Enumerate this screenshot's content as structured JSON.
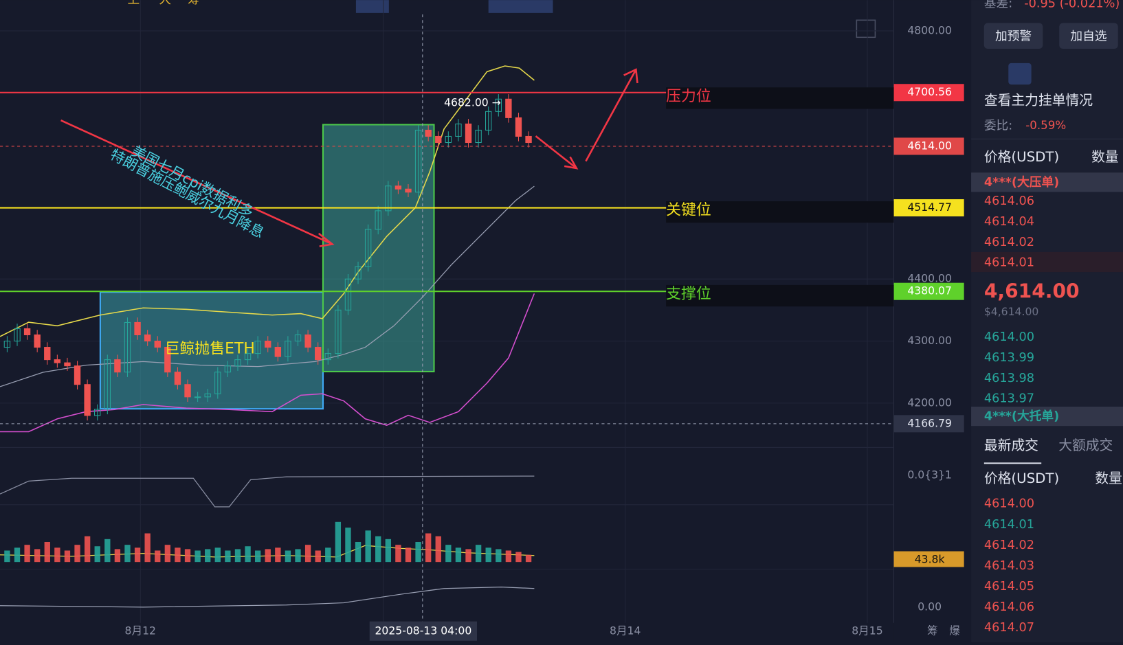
{
  "toolbar": {
    "tabs": [
      "上",
      "大",
      "筹"
    ]
  },
  "annotations": {
    "news1": "美国七月cpi数据利多",
    "news2": "特朗普施压鲍威尔九月降息",
    "whale": "巨鲸抛售ETH",
    "resistance": "压力位",
    "key": "关键位",
    "support": "支撑位",
    "peak": "4682.00 →"
  },
  "price_axis": {
    "ticks": [
      {
        "value": 4800,
        "label": "4800.00"
      },
      {
        "value": 4400,
        "label": "4400.00"
      },
      {
        "value": 4300,
        "label": "4300.00"
      },
      {
        "value": 4200,
        "label": "4200.00"
      }
    ],
    "levels": [
      {
        "value": 4700.56,
        "label": "4700.56",
        "color": "#f23645"
      },
      {
        "value": 4614,
        "label": "4614.00",
        "color": "#e04848"
      },
      {
        "value": 4514.77,
        "label": "4514.77",
        "color": "#f5e11f"
      },
      {
        "value": 4380.07,
        "label": "4380.07",
        "color": "#5fd12b"
      }
    ],
    "crosshair": {
      "value": 4166.79,
      "label": "4166.79"
    },
    "indicator_label": "0.0{3}1",
    "volume_label": "43.8k",
    "macd_label": "0.00"
  },
  "time_axis": [
    "8月12",
    "8月14",
    "8月15"
  ],
  "crosshair_time": "2025-08-13 04:00",
  "side_tabs": [
    "筹",
    "爆"
  ],
  "candles": [
    [
      4290,
      4308,
      4282,
      4300
    ],
    [
      4300,
      4328,
      4292,
      4320
    ],
    [
      4320,
      4328,
      4302,
      4310
    ],
    [
      4310,
      4318,
      4282,
      4290
    ],
    [
      4290,
      4298,
      4262,
      4270
    ],
    [
      4270,
      4278,
      4257,
      4265
    ],
    [
      4265,
      4273,
      4252,
      4260
    ],
    [
      4260,
      4268,
      4222,
      4230
    ],
    [
      4230,
      4238,
      4172,
      4180
    ],
    [
      4180,
      4198,
      4172,
      4190
    ],
    [
      4190,
      4278,
      4182,
      4270
    ],
    [
      4270,
      4278,
      4242,
      4250
    ],
    [
      4250,
      4338,
      4242,
      4330
    ],
    [
      4330,
      4338,
      4302,
      4310
    ],
    [
      4310,
      4318,
      4292,
      4300
    ],
    [
      4300,
      4308,
      4282,
      4290
    ],
    [
      4290,
      4298,
      4242,
      4250
    ],
    [
      4250,
      4258,
      4222,
      4230
    ],
    [
      4230,
      4238,
      4202,
      4210
    ],
    [
      4210,
      4218,
      4202,
      4210
    ],
    [
      4210,
      4223,
      4202,
      4215
    ],
    [
      4215,
      4258,
      4207,
      4250
    ],
    [
      4250,
      4268,
      4242,
      4260
    ],
    [
      4260,
      4278,
      4252,
      4270
    ],
    [
      4270,
      4288,
      4262,
      4280
    ],
    [
      4280,
      4308,
      4272,
      4300
    ],
    [
      4300,
      4308,
      4282,
      4290
    ],
    [
      4290,
      4298,
      4267,
      4275
    ],
    [
      4275,
      4308,
      4267,
      4300
    ],
    [
      4300,
      4318,
      4292,
      4310
    ],
    [
      4310,
      4318,
      4282,
      4290
    ],
    [
      4290,
      4298,
      4262,
      4270
    ],
    [
      4270,
      4288,
      4262,
      4280
    ],
    [
      4280,
      4358,
      4272,
      4350
    ],
    [
      4350,
      4408,
      4342,
      4400
    ],
    [
      4400,
      4428,
      4392,
      4420
    ],
    [
      4420,
      4488,
      4412,
      4480
    ],
    [
      4480,
      4518,
      4472,
      4510
    ],
    [
      4510,
      4558,
      4502,
      4550
    ],
    [
      4550,
      4558,
      4537,
      4545
    ],
    [
      4545,
      4553,
      4532,
      4540
    ],
    [
      4540,
      4648,
      4532,
      4640
    ],
    [
      4640,
      4648,
      4622,
      4630
    ],
    [
      4630,
      4638,
      4612,
      4620
    ],
    [
      4620,
      4638,
      4612,
      4630
    ],
    [
      4630,
      4658,
      4622,
      4650
    ],
    [
      4650,
      4658,
      4612,
      4620
    ],
    [
      4620,
      4648,
      4612,
      4640
    ],
    [
      4640,
      4678,
      4632,
      4670
    ],
    [
      4670,
      4698,
      4662,
      4690
    ],
    [
      4690,
      4698,
      4652,
      4660
    ],
    [
      4660,
      4668,
      4622,
      4630
    ],
    [
      4630,
      4638,
      4612,
      4620
    ]
  ],
  "volumes": [
    8,
    10,
    12,
    9,
    14,
    10,
    8,
    12,
    18,
    11,
    16,
    9,
    12,
    10,
    20,
    8,
    12,
    10,
    9,
    8,
    9,
    10,
    8,
    9,
    11,
    8,
    9,
    10,
    8,
    9,
    12,
    8,
    10,
    28,
    24,
    14,
    22,
    18,
    16,
    12,
    10,
    14,
    20,
    18,
    12,
    10,
    9,
    12,
    10,
    9,
    8,
    7,
    5
  ],
  "panel": {
    "basis_label": "基差:",
    "basis_value": "-0.95 (-0.021%)",
    "buttons": [
      "加预警",
      "加自选"
    ],
    "depth_link": "查看主力挂单情况",
    "ratio_label": "委比:",
    "ratio_value": "-0.59%",
    "book_header": [
      "价格(USDT)",
      "数量"
    ],
    "big_ask": "4***(大压单)",
    "asks": [
      "4614.06",
      "4614.04",
      "4614.02",
      "4614.01"
    ],
    "last_price": "4,614.00",
    "last_usd": "$4,614.00",
    "bids": [
      "4614.00",
      "4613.99",
      "4613.98",
      "4613.97"
    ],
    "big_bid": "4***(大托单)",
    "trade_tabs": [
      "最新成交",
      "大额成交"
    ],
    "trade_header": [
      "价格(USDT)",
      "数量"
    ],
    "trades": [
      {
        "price": "4614.00",
        "side": "sell"
      },
      {
        "price": "4614.01",
        "side": "buy"
      },
      {
        "price": "4614.02",
        "side": "sell"
      },
      {
        "price": "4614.03",
        "side": "sell"
      },
      {
        "price": "4614.05",
        "side": "sell"
      },
      {
        "price": "4614.06",
        "side": "sell"
      },
      {
        "price": "4614.07",
        "side": "sell"
      }
    ]
  }
}
